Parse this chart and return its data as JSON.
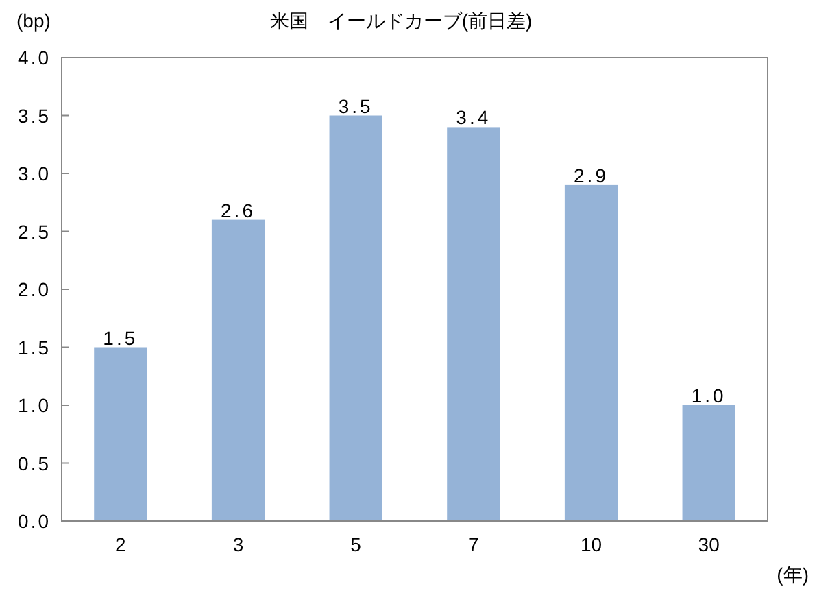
{
  "chart_data": {
    "type": "bar",
    "title": "米国　イールドカーブ(前日差)",
    "ylabel": "(bp)",
    "xlabel": "(年)",
    "categories": [
      "2",
      "3",
      "5",
      "7",
      "10",
      "30"
    ],
    "values": [
      1.5,
      2.6,
      3.5,
      3.4,
      2.9,
      1.0
    ],
    "color": "#95b3d7",
    "ylim": [
      0,
      4
    ],
    "yticks": [
      {
        "value": 0,
        "label": "0.0"
      },
      {
        "value": 0.5,
        "label": "0.5"
      },
      {
        "value": 1,
        "label": "1.0"
      },
      {
        "value": 1.5,
        "label": "1.5"
      },
      {
        "value": 2,
        "label": "2.0"
      },
      {
        "value": 2.5,
        "label": "2.5"
      },
      {
        "value": 3,
        "label": "3.0"
      },
      {
        "value": 3.5,
        "label": "3.5"
      },
      {
        "value": 4,
        "label": "4.0"
      }
    ],
    "value_labels": [
      "1.5",
      "2.6",
      "3.5",
      "3.4",
      "2.9",
      "1.0"
    ],
    "grid": false
  }
}
